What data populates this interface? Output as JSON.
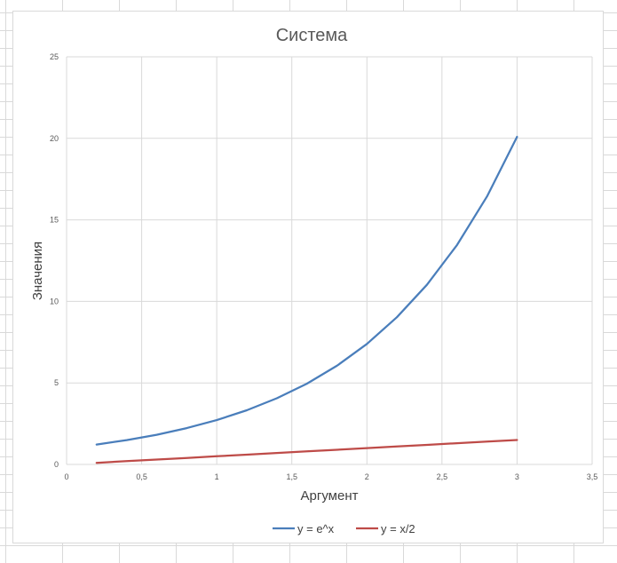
{
  "chart_data": {
    "type": "line",
    "title": "Система",
    "xlabel": "Аргумент",
    "ylabel": "Значения",
    "xlim": [
      0,
      3.5
    ],
    "ylim": [
      0,
      25
    ],
    "x_ticks": [
      "0",
      "0,5",
      "1",
      "1,5",
      "2",
      "2,5",
      "3",
      "3,5"
    ],
    "y_ticks": [
      "0",
      "5",
      "10",
      "15",
      "20",
      "25"
    ],
    "x_tick_values": [
      0,
      0.5,
      1,
      1.5,
      2,
      2.5,
      3,
      3.5
    ],
    "y_tick_values": [
      0,
      5,
      10,
      15,
      20,
      25
    ],
    "grid": true,
    "legend_position": "bottom",
    "series": [
      {
        "name": "y = e^x",
        "color": "#4a7ebb",
        "x": [
          0.2,
          0.4,
          0.6,
          0.8,
          1.0,
          1.2,
          1.4,
          1.6,
          1.8,
          2.0,
          2.2,
          2.4,
          2.6,
          2.8,
          3.0
        ],
        "y": [
          1.22,
          1.49,
          1.82,
          2.23,
          2.72,
          3.32,
          4.06,
          4.95,
          6.05,
          7.39,
          9.03,
          11.02,
          13.46,
          16.44,
          20.09
        ]
      },
      {
        "name": "y = x/2",
        "color": "#be4b48",
        "x": [
          0.2,
          0.4,
          0.6,
          0.8,
          1.0,
          1.2,
          1.4,
          1.6,
          1.8,
          2.0,
          2.2,
          2.4,
          2.6,
          2.8,
          3.0
        ],
        "y": [
          0.1,
          0.2,
          0.3,
          0.4,
          0.5,
          0.6,
          0.7,
          0.8,
          0.9,
          1.0,
          1.1,
          1.2,
          1.3,
          1.4,
          1.5
        ]
      }
    ]
  }
}
